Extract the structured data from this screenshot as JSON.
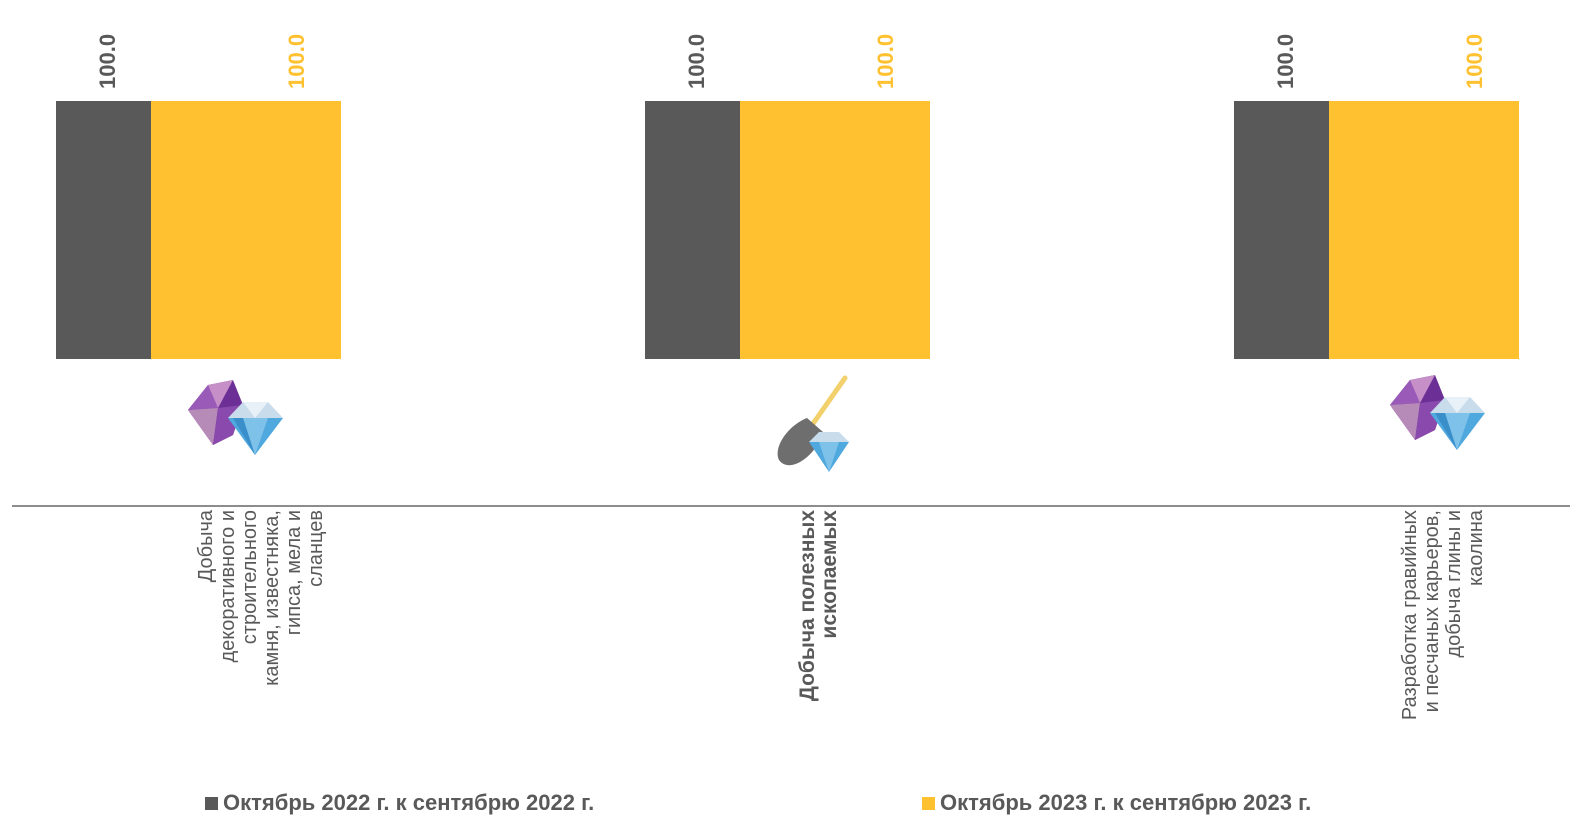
{
  "chart_data": {
    "type": "bar",
    "categories": [
      "Добыча декоративного и строительного камня, известняка, гипса, мела и сланцев",
      "Добыча полезных ископаемых",
      "Разработка гравийных и песчаных карьеров, добыча глины и каолина"
    ],
    "category_label_lines": [
      [
        "Добыча",
        "декоративного и",
        "строительного",
        "камня, известняка,",
        "гипса, мела и",
        "сланцев"
      ],
      [
        "Добыча полезных",
        "ископаемых"
      ],
      [
        "Разработка гравийных",
        "и песчаных карьеров,",
        "добыча глины и",
        "каолина"
      ]
    ],
    "category_bold": [
      false,
      true,
      false
    ],
    "category_icons": [
      "gems-icon",
      "shovel-gem-icon",
      "gems-icon"
    ],
    "series": [
      {
        "name": "Октябрь 2022 г. к сентябрю 2022 г.",
        "values": [
          100.0,
          100.0,
          100.0
        ],
        "color": "#595959"
      },
      {
        "name": "Октябрь 2023 г. к сентябрю 2023 г.",
        "values": [
          100.0,
          100.0,
          100.0
        ],
        "color": "#FFC12F"
      }
    ],
    "value_label_colors": [
      "#595959",
      "#FFC12F"
    ],
    "ylim": [
      0,
      100
    ],
    "grid": false,
    "legend_position": "bottom"
  }
}
